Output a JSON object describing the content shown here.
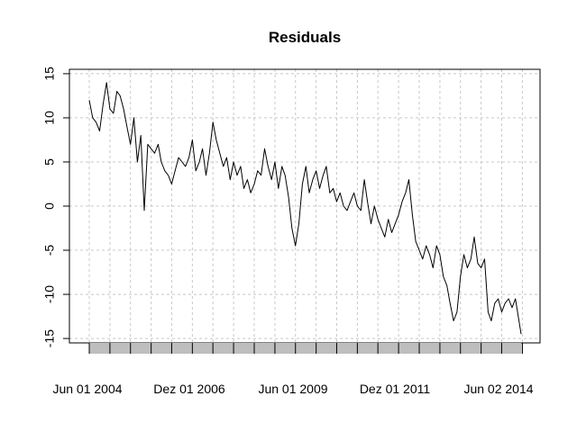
{
  "chart_data": {
    "type": "line",
    "title": "Residuals",
    "xlabel": "",
    "ylabel": "",
    "x_tick_labels": [
      "Jun 01 2004",
      "Dez 01 2006",
      "Jun 01 2009",
      "Dez 01 2011",
      "Jun 02 2014"
    ],
    "y_ticks": [
      -15,
      -10,
      -5,
      0,
      5,
      10,
      15
    ],
    "y_tick_labels": [
      "-15",
      "-10",
      "-5",
      "0",
      "5",
      "10",
      "15"
    ],
    "ylim": [
      -15.5,
      15.5
    ],
    "xlim": [
      "2004-06-01",
      "2014-11-20"
    ],
    "grid": true,
    "line_color": "#000000",
    "grid_color": "#c8c8c8",
    "series": [
      {
        "x": [
          "2004-06-01",
          "2004-07-01",
          "2004-08-01",
          "2004-09-01",
          "2004-10-01",
          "2004-11-01",
          "2004-12-01",
          "2005-01-01",
          "2005-02-01",
          "2005-03-01",
          "2005-04-01",
          "2005-05-01",
          "2005-06-01",
          "2005-07-01",
          "2005-08-01",
          "2005-09-01",
          "2005-10-01",
          "2005-11-01",
          "2005-12-01",
          "2006-01-01",
          "2006-02-01",
          "2006-03-01",
          "2006-04-01",
          "2006-05-01",
          "2006-06-01",
          "2006-07-01",
          "2006-08-01",
          "2006-09-01",
          "2006-10-01",
          "2006-11-01",
          "2006-12-01",
          "2007-01-01",
          "2007-02-01",
          "2007-03-01",
          "2007-04-01",
          "2007-05-01",
          "2007-06-01",
          "2007-07-01",
          "2007-08-01",
          "2007-09-01",
          "2007-10-01",
          "2007-11-01",
          "2007-12-01",
          "2008-01-01",
          "2008-02-01",
          "2008-03-01",
          "2008-04-01",
          "2008-05-01",
          "2008-06-01",
          "2008-07-01",
          "2008-08-01",
          "2008-09-01",
          "2008-10-01",
          "2008-11-01",
          "2008-12-01",
          "2009-01-01",
          "2009-02-01",
          "2009-03-01",
          "2009-04-01",
          "2009-05-01",
          "2009-06-01",
          "2009-07-01",
          "2009-08-01",
          "2009-09-01",
          "2009-10-01",
          "2009-11-01",
          "2009-12-01",
          "2010-01-01",
          "2010-02-01",
          "2010-03-01",
          "2010-04-01",
          "2010-05-01",
          "2010-06-01",
          "2010-07-01",
          "2010-08-01",
          "2010-09-01",
          "2010-10-01",
          "2010-11-01",
          "2010-12-01",
          "2011-01-01",
          "2011-02-01",
          "2011-03-01",
          "2011-04-01",
          "2011-05-01",
          "2011-06-01",
          "2011-07-01",
          "2011-08-01",
          "2011-09-01",
          "2011-10-01",
          "2011-11-01",
          "2011-12-01",
          "2012-01-01",
          "2012-02-01",
          "2012-03-01",
          "2012-04-01",
          "2012-05-01",
          "2012-06-01",
          "2012-07-01",
          "2012-08-01",
          "2012-09-01",
          "2012-10-01",
          "2012-11-01",
          "2012-12-01",
          "2013-01-01",
          "2013-02-01",
          "2013-03-01",
          "2013-04-01",
          "2013-05-01",
          "2013-06-01",
          "2013-07-01",
          "2013-08-01",
          "2013-09-01",
          "2013-10-01",
          "2013-11-01",
          "2013-12-01",
          "2014-01-01",
          "2014-02-01",
          "2014-03-01",
          "2014-04-01",
          "2014-05-01",
          "2014-06-01",
          "2014-07-01",
          "2014-08-01",
          "2014-09-01",
          "2014-10-01",
          "2014-11-20"
        ],
        "values": [
          12.0,
          10.0,
          9.5,
          8.5,
          11.5,
          14.0,
          11.0,
          10.5,
          13.0,
          12.5,
          11.0,
          9.0,
          7.0,
          10.0,
          5.0,
          8.0,
          -0.5,
          7.0,
          6.5,
          6.0,
          7.0,
          5.0,
          4.0,
          3.5,
          2.5,
          4.0,
          5.5,
          5.0,
          4.5,
          5.5,
          7.5,
          4.0,
          5.0,
          6.5,
          3.5,
          6.0,
          9.5,
          7.5,
          6.0,
          4.5,
          5.5,
          3.0,
          5.0,
          3.5,
          4.5,
          2.0,
          3.0,
          1.5,
          2.5,
          4.0,
          3.5,
          6.5,
          4.5,
          3.0,
          5.0,
          2.0,
          4.5,
          3.5,
          1.0,
          -2.5,
          -4.5,
          -2.0,
          2.5,
          4.5,
          1.5,
          3.0,
          4.0,
          2.0,
          3.5,
          4.5,
          1.5,
          2.0,
          0.5,
          1.5,
          0.0,
          -0.5,
          0.5,
          1.5,
          0.0,
          -0.5,
          3.0,
          0.5,
          -2.0,
          0.0,
          -1.5,
          -2.5,
          -3.5,
          -1.5,
          -3.0,
          -2.0,
          -1.0,
          0.5,
          1.5,
          3.0,
          -1.0,
          -4.0,
          -5.0,
          -6.0,
          -4.5,
          -5.5,
          -7.0,
          -4.5,
          -5.5,
          -8.0,
          -9.0,
          -11.0,
          -13.0,
          -12.0,
          -8.0,
          -5.5,
          -7.0,
          -6.0,
          -3.5,
          -6.5,
          -7.0,
          -6.0,
          -12.0,
          -13.0,
          -11.0,
          -10.5,
          -12.0,
          -11.0,
          -10.5,
          -11.5,
          -10.5,
          -14.5
        ]
      }
    ]
  }
}
